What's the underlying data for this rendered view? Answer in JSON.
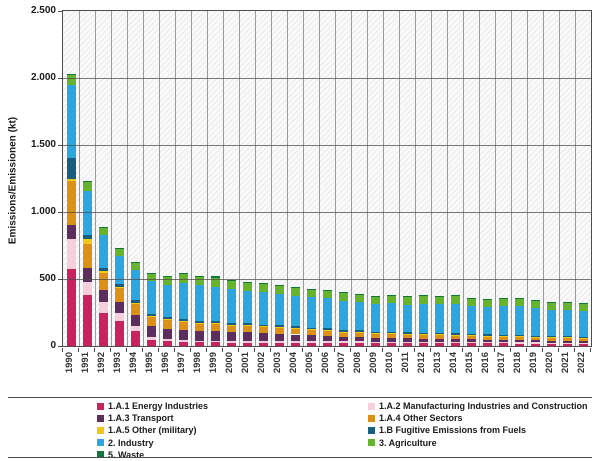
{
  "chart_data": {
    "type": "bar",
    "stacked": true,
    "title": "",
    "ylabel": "Emissions/Emissionen (kt)",
    "ylim": [
      0,
      2500
    ],
    "ytick_step": 500,
    "yticks": [
      {
        "value": 0,
        "label": "0"
      },
      {
        "value": 500,
        "label": "500"
      },
      {
        "value": 1000,
        "label": "1.000"
      },
      {
        "value": 1500,
        "label": "1.500"
      },
      {
        "value": 2000,
        "label": "2.000"
      },
      {
        "value": 2500,
        "label": "2.500"
      }
    ],
    "grid": {
      "vertical": true,
      "horizontal": true,
      "hatch_background": true
    },
    "categories": [
      "1990",
      "1991",
      "1992",
      "1993",
      "1994",
      "1995",
      "1996",
      "1997",
      "1998",
      "1999",
      "2000",
      "2001",
      "2002",
      "2003",
      "2004",
      "2005",
      "2006",
      "2007",
      "2008",
      "2009",
      "2010",
      "2011",
      "2012",
      "2013",
      "2014",
      "2015",
      "2016",
      "2017",
      "2018",
      "2019",
      "2020",
      "2021",
      "2022"
    ],
    "series": [
      {
        "name": "1.A.1 Energy Industries",
        "color": "#c9235f",
        "values": [
          575,
          380,
          250,
          185,
          110,
          45,
          35,
          30,
          28,
          27,
          25,
          25,
          25,
          25,
          24,
          24,
          24,
          23,
          23,
          21,
          22,
          21,
          21,
          21,
          20,
          20,
          19,
          19,
          18,
          17,
          16,
          16,
          15
        ]
      },
      {
        "name": "1.A.2 Manufacturing Industries and Construction",
        "color": "#f6cede",
        "values": [
          225,
          100,
          80,
          60,
          40,
          25,
          15,
          12,
          12,
          12,
          12,
          12,
          12,
          12,
          12,
          12,
          12,
          12,
          12,
          10,
          11,
          11,
          11,
          11,
          11,
          11,
          10,
          10,
          10,
          10,
          9,
          9,
          9
        ]
      },
      {
        "name": "1.A.3 Transport",
        "color": "#5c2d5e",
        "values": [
          100,
          100,
          85,
          80,
          80,
          80,
          78,
          78,
          75,
          72,
          68,
          65,
          60,
          55,
          50,
          45,
          40,
          36,
          33,
          30,
          28,
          26,
          24,
          23,
          21,
          20,
          19,
          18,
          17,
          16,
          14,
          14,
          13
        ]
      },
      {
        "name": "1.A.4 Other Sectors",
        "color": "#dd9016",
        "values": [
          330,
          185,
          130,
          105,
          85,
          70,
          65,
          60,
          55,
          55,
          50,
          50,
          48,
          48,
          45,
          42,
          40,
          35,
          35,
          34,
          35,
          32,
          32,
          33,
          30,
          29,
          28,
          27,
          25,
          24,
          24,
          23,
          22
        ]
      },
      {
        "name": "1.A.5 Other (military)",
        "color": "#f2c614",
        "values": [
          20,
          30,
          15,
          10,
          8,
          6,
          5,
          5,
          4,
          4,
          4,
          4,
          3,
          3,
          3,
          3,
          3,
          2,
          2,
          2,
          2,
          2,
          2,
          2,
          2,
          2,
          2,
          2,
          2,
          2,
          2,
          2,
          2
        ]
      },
      {
        "name": "1.B Fugitive Emissions from Fuels",
        "color": "#17607d",
        "values": [
          155,
          35,
          25,
          20,
          18,
          15,
          15,
          15,
          14,
          14,
          13,
          13,
          12,
          12,
          12,
          12,
          12,
          11,
          11,
          10,
          10,
          10,
          10,
          10,
          10,
          9,
          9,
          9,
          9,
          8,
          8,
          8,
          8
        ]
      },
      {
        "name": "2. Industry",
        "color": "#2ba6de",
        "values": [
          540,
          330,
          240,
          215,
          230,
          245,
          245,
          270,
          265,
          260,
          250,
          240,
          240,
          235,
          227,
          225,
          225,
          220,
          212,
          205,
          210,
          207,
          215,
          213,
          222,
          209,
          203,
          217,
          217,
          208,
          198,
          199,
          194
        ]
      },
      {
        "name": "3. Agriculture",
        "color": "#66b32e",
        "values": [
          80,
          65,
          60,
          55,
          50,
          55,
          55,
          65,
          62,
          65,
          62,
          60,
          60,
          60,
          58,
          58,
          56,
          55,
          55,
          56,
          55,
          54,
          56,
          55,
          55,
          53,
          53,
          53,
          53,
          53,
          52,
          52,
          52
        ]
      },
      {
        "name": "5. Waste",
        "color": "#0b7a3b",
        "values": [
          5,
          5,
          5,
          5,
          4,
          5,
          6,
          8,
          8,
          10,
          10,
          10,
          9,
          9,
          9,
          8,
          8,
          7,
          7,
          7,
          7,
          7,
          7,
          7,
          7,
          7,
          7,
          7,
          7,
          7,
          7,
          7,
          7
        ]
      }
    ],
    "legend": {
      "position": "bottom",
      "columns": [
        [
          0,
          2,
          4,
          6,
          8
        ],
        [
          1,
          3,
          5,
          7
        ]
      ]
    }
  }
}
